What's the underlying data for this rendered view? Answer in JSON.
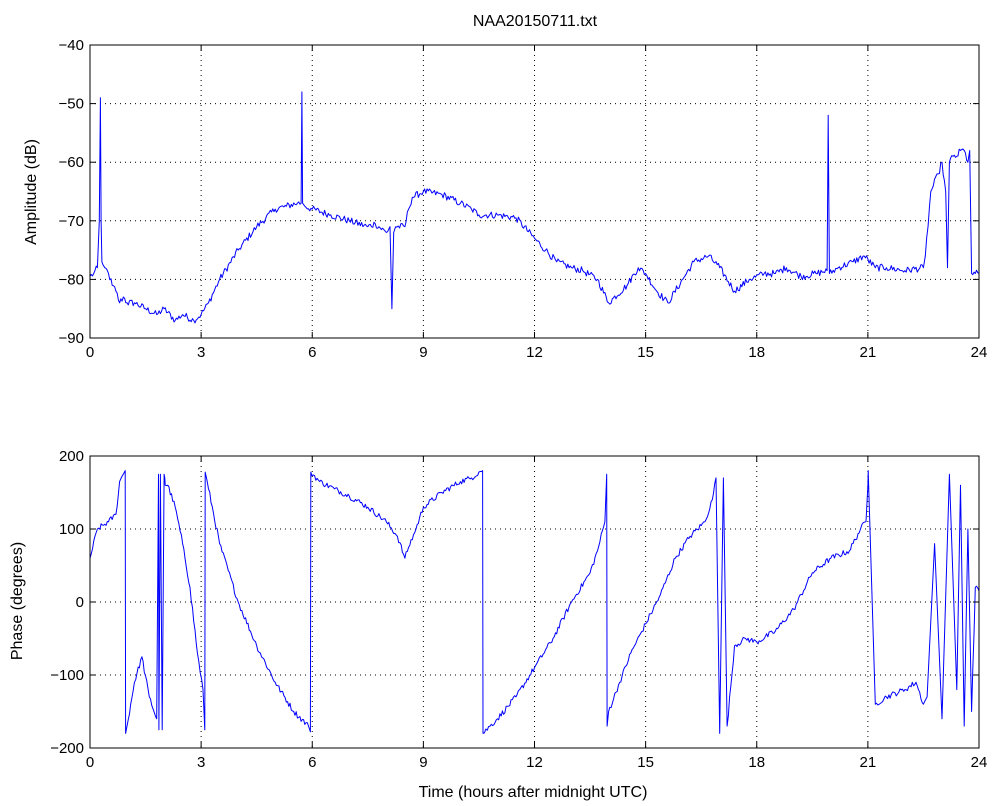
{
  "title": "NAA20150711.txt",
  "colors": {
    "series": "#0000ff",
    "axes": "#000000",
    "grid": "#000000",
    "background": "#ffffff"
  },
  "chart_data": [
    {
      "type": "line",
      "title": "NAA20150711.txt",
      "xlabel": "",
      "ylabel": "Amplitude (dB)",
      "xlim": [
        0,
        24
      ],
      "ylim": [
        -90,
        -40
      ],
      "xticks": [
        0,
        3,
        6,
        9,
        12,
        15,
        18,
        21,
        24
      ],
      "yticks": [
        -90,
        -80,
        -70,
        -60,
        -50,
        -40
      ],
      "xtick_labels": [
        "0",
        "3",
        "6",
        "9",
        "12",
        "15",
        "18",
        "21",
        "24"
      ],
      "ytick_labels": [
        "−90",
        "−80",
        "−70",
        "−60",
        "−50",
        "−40"
      ],
      "grid": true,
      "noise": 0.6,
      "series": [
        {
          "x": [
            0,
            0.1,
            0.2,
            0.25,
            0.28,
            0.3,
            0.32,
            0.35,
            0.4,
            0.5,
            0.6,
            0.7,
            0.8,
            0.9,
            1.0,
            1.2,
            1.5,
            1.8,
            2.0,
            2.3,
            2.5,
            2.8,
            3.0,
            3.2,
            3.5,
            4.0,
            4.5,
            5.0,
            5.3,
            5.6,
            5.7,
            5.72,
            5.74,
            5.8,
            6.0,
            6.5,
            7.0,
            7.5,
            7.7,
            8.0,
            8.1,
            8.15,
            8.2,
            8.25,
            8.5,
            8.6,
            8.7,
            9.0,
            9.5,
            10.0,
            10.3,
            10.5,
            11.0,
            11.5,
            12.0,
            12.3,
            12.6,
            13.0,
            13.3,
            13.7,
            14.0,
            14.5,
            14.8,
            15.0,
            15.3,
            15.6,
            16.0,
            16.3,
            16.7,
            17.0,
            17.4,
            17.8,
            18.2,
            18.5,
            18.8,
            19.2,
            19.6,
            19.9,
            19.93,
            19.96,
            20.2,
            20.6,
            20.9,
            21.2,
            21.5,
            22.0,
            22.5,
            22.55,
            22.7,
            22.9,
            23.0,
            23.1,
            23.15,
            23.2,
            23.3,
            23.4,
            23.5,
            23.6,
            23.7,
            23.75,
            23.8,
            23.9,
            24.0
          ],
          "values": [
            -79.5,
            -79,
            -78,
            -70,
            -49,
            -70,
            -77,
            -77.5,
            -78,
            -79,
            -81,
            -82,
            -84,
            -83,
            -84,
            -84,
            -85,
            -86,
            -85,
            -87,
            -86,
            -87,
            -86,
            -84,
            -80,
            -75,
            -71,
            -68,
            -67.5,
            -67,
            -67,
            -48,
            -67,
            -67.5,
            -68,
            -69,
            -70,
            -71,
            -70.5,
            -72,
            -71,
            -85,
            -72,
            -71,
            -71,
            -68,
            -66,
            -65,
            -65.5,
            -67,
            -68,
            -69,
            -69,
            -69.5,
            -73,
            -75,
            -77,
            -78,
            -78.5,
            -80,
            -84,
            -81,
            -78,
            -79,
            -82,
            -84,
            -80,
            -77,
            -76,
            -78,
            -82,
            -80,
            -79,
            -79,
            -78,
            -79.5,
            -79,
            -78.5,
            -52,
            -79,
            -78,
            -77,
            -76,
            -78,
            -78,
            -78.5,
            -78,
            -76,
            -65,
            -62,
            -60,
            -65,
            -78,
            -60,
            -59,
            -59,
            -58,
            -58,
            -60,
            -58,
            -79,
            -79,
            -79
          ]
        }
      ]
    },
    {
      "type": "line",
      "title": "",
      "xlabel": "Time (hours after midnight UTC)",
      "ylabel": "Phase (degrees)",
      "xlim": [
        0,
        24
      ],
      "ylim": [
        -200,
        200
      ],
      "xticks": [
        0,
        3,
        6,
        9,
        12,
        15,
        18,
        21,
        24
      ],
      "yticks": [
        -200,
        -100,
        0,
        100,
        200
      ],
      "xtick_labels": [
        "0",
        "3",
        "6",
        "9",
        "12",
        "15",
        "18",
        "21",
        "24"
      ],
      "ytick_labels": [
        "−200",
        "−100",
        "0",
        "100",
        "200"
      ],
      "grid": true,
      "noise": 4,
      "series": [
        {
          "x": [
            0,
            0.2,
            0.5,
            0.7,
            0.8,
            0.9,
            0.95,
            0.96,
            1.0,
            1.2,
            1.4,
            1.6,
            1.8,
            1.85,
            1.86,
            1.9,
            1.95,
            2.0,
            2.02,
            2.03,
            2.1,
            2.3,
            2.5,
            2.7,
            2.9,
            3.05,
            3.1,
            3.11,
            3.2,
            3.5,
            4.0,
            4.5,
            5.0,
            5.5,
            5.9,
            5.95,
            5.96,
            6.2,
            6.6,
            7.0,
            7.5,
            8.0,
            8.3,
            8.5,
            8.6,
            8.8,
            9.0,
            9.5,
            10.0,
            10.3,
            10.5,
            10.6,
            10.61,
            10.8,
            11.0,
            11.5,
            12.0,
            12.5,
            13.0,
            13.5,
            13.7,
            13.9,
            13.95,
            13.96,
            14.0,
            14.3,
            14.6,
            15.0,
            15.4,
            15.8,
            16.2,
            16.6,
            16.8,
            16.9,
            17.0,
            17.1,
            17.2,
            17.4,
            17.7,
            18.0,
            18.5,
            19.0,
            19.5,
            20.0,
            20.5,
            20.8,
            20.95,
            21.0,
            21.01,
            21.2,
            21.5,
            22.0,
            22.3,
            22.5,
            22.6,
            22.8,
            23.0,
            23.2,
            23.4,
            23.5,
            23.6,
            23.7,
            23.8,
            23.9,
            24.0
          ],
          "values": [
            60,
            100,
            110,
            120,
            165,
            175,
            180,
            -180,
            -170,
            -110,
            -75,
            -130,
            -160,
            175,
            -175,
            175,
            -175,
            175,
            170,
            160,
            160,
            130,
            80,
            20,
            -70,
            -120,
            -175,
            178,
            155,
            80,
            0,
            -60,
            -110,
            -150,
            -170,
            -178,
            178,
            165,
            155,
            145,
            130,
            110,
            90,
            60,
            75,
            100,
            130,
            150,
            165,
            170,
            178,
            180,
            -180,
            -170,
            -160,
            -130,
            -90,
            -50,
            0,
            40,
            70,
            110,
            175,
            -170,
            -150,
            -110,
            -70,
            -30,
            10,
            60,
            90,
            110,
            140,
            170,
            -180,
            170,
            -170,
            -60,
            -50,
            -55,
            -40,
            -10,
            40,
            60,
            70,
            100,
            110,
            160,
            180,
            -140,
            -130,
            -120,
            -110,
            -140,
            -130,
            80,
            -160,
            175,
            -120,
            160,
            -170,
            100,
            -150,
            20,
            15
          ]
        }
      ]
    }
  ]
}
